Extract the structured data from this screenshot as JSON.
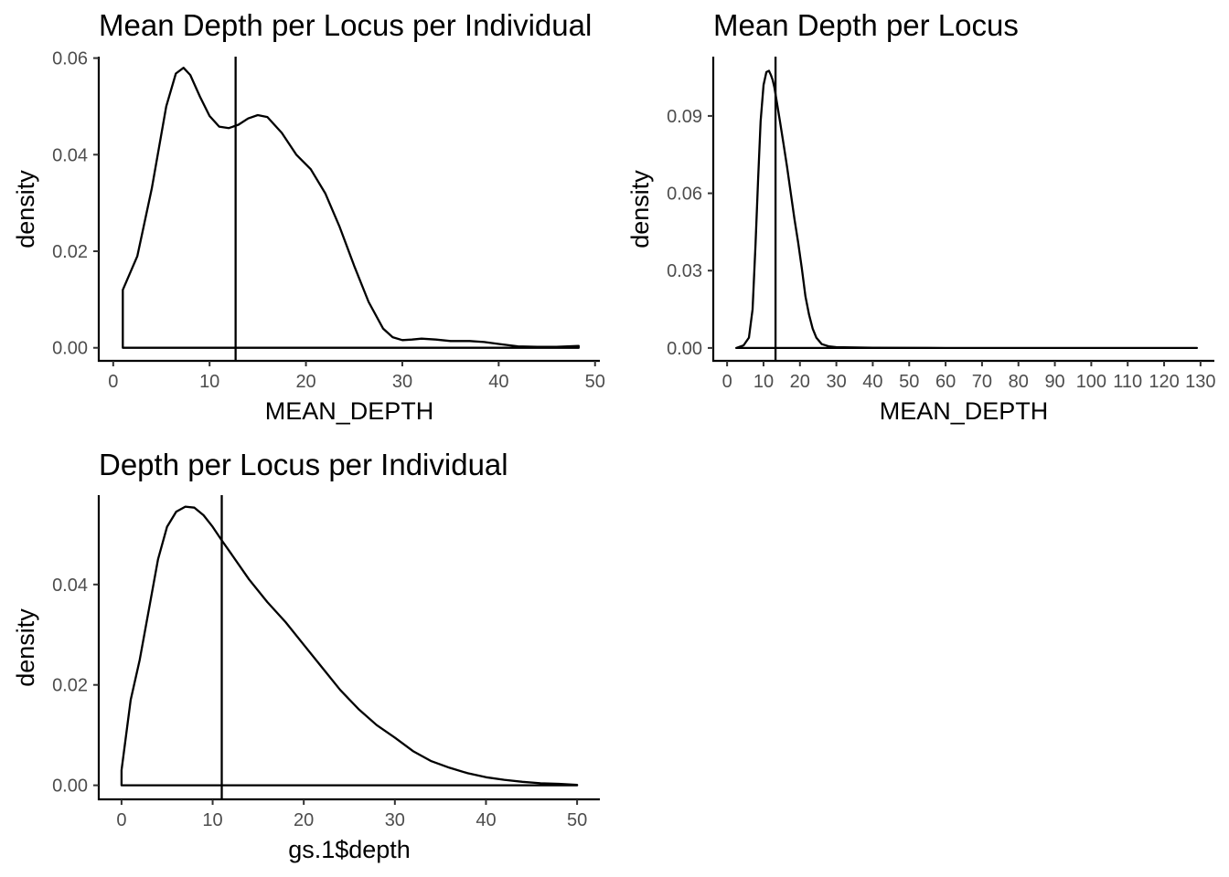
{
  "chart_data": [
    {
      "id": "p1",
      "type": "line",
      "subtype": "density",
      "title": "Mean Depth per Locus per Individual",
      "xlabel": "MEAN_DEPTH",
      "ylabel": "density",
      "xlim": [
        -1.5,
        50.5
      ],
      "ylim": [
        -0.0027,
        0.0603
      ],
      "x_ticks": [
        0,
        10,
        20,
        30,
        40,
        50
      ],
      "x_tick_labels": [
        "0",
        "10",
        "20",
        "30",
        "40",
        "50"
      ],
      "y_ticks": [
        0.0,
        0.02,
        0.04,
        0.06
      ],
      "y_tick_labels": [
        "0.00",
        "0.02",
        "0.04",
        "0.06"
      ],
      "vline": 12.7,
      "density_x": [
        1.0,
        2.5,
        4.0,
        5.5,
        6.5,
        7.3,
        8.0,
        9.0,
        10.0,
        11.0,
        12.0,
        13.0,
        14.0,
        15.0,
        16.0,
        17.5,
        19.0,
        20.5,
        22.0,
        23.5,
        25.0,
        26.5,
        28.0,
        29.0,
        30.0,
        31.0,
        32.0,
        33.5,
        35.0,
        37.0,
        38.5,
        40.0,
        42.0,
        44.0,
        46.0,
        48.3
      ],
      "density_y": [
        0.012,
        0.019,
        0.033,
        0.05,
        0.0568,
        0.058,
        0.0565,
        0.052,
        0.048,
        0.0458,
        0.0455,
        0.0462,
        0.0475,
        0.0482,
        0.0478,
        0.0445,
        0.04,
        0.037,
        0.032,
        0.025,
        0.017,
        0.0095,
        0.004,
        0.0022,
        0.0016,
        0.0017,
        0.0019,
        0.0017,
        0.0014,
        0.0014,
        0.0012,
        0.0008,
        0.0003,
        0.0002,
        0.0002,
        0.0004
      ]
    },
    {
      "id": "p2",
      "type": "line",
      "subtype": "density",
      "title": "Mean Depth per Locus",
      "xlabel": "MEAN_DEPTH",
      "ylabel": "density",
      "xlim": [
        -3.8,
        133.8
      ],
      "ylim": [
        -0.005,
        0.113
      ],
      "x_ticks": [
        0,
        10,
        20,
        30,
        40,
        50,
        60,
        70,
        80,
        90,
        100,
        110,
        120,
        130
      ],
      "x_tick_labels": [
        "0",
        "10",
        "20",
        "30",
        "40",
        "50",
        "60",
        "70",
        "80",
        "90",
        "100",
        "110",
        "120",
        "130"
      ],
      "y_ticks": [
        0.0,
        0.03,
        0.06,
        0.09
      ],
      "y_tick_labels": [
        "0.00",
        "0.03",
        "0.06",
        "0.09"
      ],
      "vline": 13.3,
      "density_x": [
        2.5,
        4.5,
        6.0,
        7.0,
        7.8,
        8.5,
        9.2,
        10.0,
        10.8,
        11.5,
        12.0,
        12.5,
        13.0,
        13.7,
        14.5,
        15.5,
        16.5,
        17.5,
        18.5,
        19.5,
        20.5,
        21.5,
        22.5,
        23.5,
        24.5,
        26.0,
        28.0,
        30.0,
        40.0,
        60.0,
        90.0,
        110.0,
        129.0
      ],
      "density_y": [
        0.0,
        0.001,
        0.004,
        0.015,
        0.04,
        0.065,
        0.088,
        0.102,
        0.107,
        0.1075,
        0.106,
        0.104,
        0.101,
        0.095,
        0.088,
        0.079,
        0.07,
        0.06,
        0.05,
        0.041,
        0.031,
        0.02,
        0.013,
        0.0075,
        0.004,
        0.0015,
        0.0006,
        0.0003,
        0.0001,
        0.0,
        0.0,
        0.0,
        0.0
      ]
    },
    {
      "id": "p3",
      "type": "line",
      "subtype": "density",
      "title": "Depth per Locus per Individual",
      "xlabel": "gs.1$depth",
      "ylabel": "density",
      "xlim": [
        -2.5,
        52.5
      ],
      "ylim": [
        -0.0028,
        0.0578
      ],
      "x_ticks": [
        0,
        10,
        20,
        30,
        40,
        50
      ],
      "x_tick_labels": [
        "0",
        "10",
        "20",
        "30",
        "40",
        "50"
      ],
      "y_ticks": [
        0.0,
        0.02,
        0.04
      ],
      "y_tick_labels": [
        "0.00",
        "0.02",
        "0.04"
      ],
      "vline": 11.0,
      "density_x": [
        0.0,
        0.5,
        1.0,
        2.0,
        3.0,
        4.0,
        5.0,
        6.0,
        7.0,
        8.0,
        9.0,
        10.0,
        11.0,
        12.0,
        14.0,
        16.0,
        18.0,
        20.0,
        22.0,
        24.0,
        26.0,
        28.0,
        30.0,
        32.0,
        34.0,
        36.0,
        38.0,
        40.0,
        42.0,
        44.0,
        46.0,
        48.0,
        50.0
      ],
      "density_y": [
        0.003,
        0.01,
        0.017,
        0.025,
        0.035,
        0.045,
        0.0515,
        0.0545,
        0.0555,
        0.0553,
        0.0538,
        0.0515,
        0.0488,
        0.0462,
        0.041,
        0.0365,
        0.0325,
        0.028,
        0.0235,
        0.019,
        0.0152,
        0.012,
        0.0095,
        0.0068,
        0.0048,
        0.0035,
        0.0024,
        0.0016,
        0.0011,
        0.0007,
        0.0004,
        0.0003,
        0.0001
      ]
    }
  ]
}
